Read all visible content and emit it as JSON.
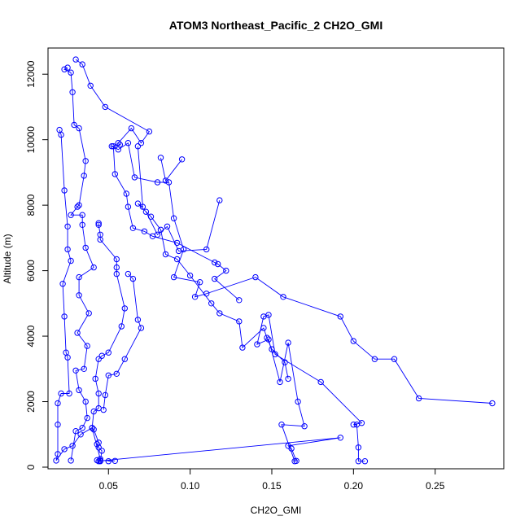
{
  "chart_data": {
    "type": "line",
    "title": "ATOM3 Northeast_Pacific_2 CH2O_GMI",
    "xlabel": "CH2O_GMI",
    "ylabel": "Altitude (m)",
    "xlim": [
      0.013,
      0.292
    ],
    "ylim": [
      -50,
      12800
    ],
    "xticks": [
      0.05,
      0.1,
      0.15,
      0.2,
      0.25
    ],
    "xtick_labels": [
      "0.05",
      "0.10",
      "0.15",
      "0.20",
      "0.25"
    ],
    "yticks": [
      0,
      2000,
      4000,
      6000,
      8000,
      10000,
      12000
    ],
    "ytick_labels": [
      "0",
      "2000",
      "4000",
      "6000",
      "8000",
      "10000",
      "12000"
    ],
    "color": "#0000ff",
    "marker": "open-circle",
    "series": [
      {
        "points": [
          [
            0.05,
            180
          ],
          [
            0.054,
            190
          ],
          [
            0.045,
            200
          ],
          [
            0.043,
            210
          ],
          [
            0.045,
            190
          ],
          [
            0.192,
            900
          ],
          [
            0.16,
            650
          ],
          [
            0.162,
            570
          ],
          [
            0.165,
            190
          ],
          [
            0.164,
            180
          ],
          [
            0.156,
            1300
          ],
          [
            0.17,
            1250
          ],
          [
            0.166,
            2000
          ],
          [
            0.16,
            3800
          ],
          [
            0.155,
            2600
          ],
          [
            0.148,
            3900
          ],
          [
            0.141,
            3750
          ],
          [
            0.145,
            4600
          ],
          [
            0.148,
            4650
          ],
          [
            0.152,
            3450
          ],
          [
            0.18,
            2600
          ],
          [
            0.205,
            1350
          ],
          [
            0.2,
            1300
          ],
          [
            0.202,
            1300
          ],
          [
            0.203,
            600
          ],
          [
            0.203,
            180
          ],
          [
            0.207,
            180
          ]
        ]
      },
      {
        "points": [
          [
            0.03,
            12450
          ],
          [
            0.034,
            12300
          ],
          [
            0.039,
            11650
          ],
          [
            0.048,
            11000
          ],
          [
            0.075,
            10250
          ],
          [
            0.07,
            9900
          ],
          [
            0.064,
            10350
          ],
          [
            0.056,
            9900
          ],
          [
            0.057,
            9850
          ],
          [
            0.052,
            9800
          ],
          [
            0.056,
            9700
          ],
          [
            0.062,
            9900
          ],
          [
            0.066,
            8850
          ],
          [
            0.08,
            8700
          ],
          [
            0.087,
            8700
          ],
          [
            0.09,
            7600
          ],
          [
            0.096,
            6650
          ],
          [
            0.09,
            5800
          ],
          [
            0.106,
            5650
          ],
          [
            0.103,
            5200
          ],
          [
            0.11,
            5300
          ],
          [
            0.14,
            5800
          ],
          [
            0.157,
            5200
          ],
          [
            0.192,
            4600
          ],
          [
            0.2,
            3850
          ],
          [
            0.213,
            3300
          ],
          [
            0.225,
            3300
          ],
          [
            0.24,
            2100
          ],
          [
            0.285,
            1950
          ]
        ]
      },
      {
        "points": [
          [
            0.02,
            10300
          ],
          [
            0.021,
            10150
          ],
          [
            0.023,
            8450
          ],
          [
            0.025,
            7350
          ],
          [
            0.025,
            6650
          ],
          [
            0.027,
            6300
          ],
          [
            0.022,
            5600
          ],
          [
            0.023,
            4600
          ],
          [
            0.024,
            3500
          ],
          [
            0.025,
            3350
          ],
          [
            0.026,
            2250
          ],
          [
            0.021,
            2250
          ],
          [
            0.019,
            1950
          ],
          [
            0.019,
            1300
          ],
          [
            0.019,
            400
          ],
          [
            0.018,
            200
          ],
          [
            0.023,
            550
          ],
          [
            0.028,
            650
          ],
          [
            0.033,
            1000
          ],
          [
            0.04,
            1200
          ],
          [
            0.045,
            250
          ],
          [
            0.044,
            180
          ]
        ]
      },
      {
        "points": [
          [
            0.025,
            12200
          ],
          [
            0.023,
            12150
          ],
          [
            0.027,
            12050
          ],
          [
            0.028,
            11450
          ],
          [
            0.029,
            10450
          ],
          [
            0.032,
            10350
          ],
          [
            0.036,
            9350
          ],
          [
            0.035,
            8900
          ],
          [
            0.032,
            8000
          ],
          [
            0.031,
            7950
          ],
          [
            0.027,
            7700
          ],
          [
            0.034,
            7700
          ],
          [
            0.034,
            7400
          ],
          [
            0.036,
            6700
          ],
          [
            0.041,
            6100
          ],
          [
            0.032,
            5800
          ],
          [
            0.032,
            5250
          ],
          [
            0.038,
            4700
          ],
          [
            0.031,
            4100
          ],
          [
            0.037,
            3700
          ],
          [
            0.035,
            3000
          ],
          [
            0.03,
            2950
          ],
          [
            0.032,
            2350
          ],
          [
            0.036,
            2000
          ],
          [
            0.037,
            1500
          ],
          [
            0.034,
            1200
          ],
          [
            0.03,
            1100
          ],
          [
            0.027,
            200
          ]
        ]
      },
      {
        "points": [
          [
            0.044,
            7450
          ],
          [
            0.044,
            7400
          ],
          [
            0.045,
            7100
          ],
          [
            0.045,
            6950
          ],
          [
            0.055,
            6350
          ],
          [
            0.055,
            6100
          ],
          [
            0.055,
            5900
          ],
          [
            0.06,
            4850
          ],
          [
            0.058,
            4300
          ],
          [
            0.05,
            3500
          ],
          [
            0.046,
            3400
          ],
          [
            0.044,
            3300
          ],
          [
            0.042,
            2700
          ],
          [
            0.044,
            2250
          ],
          [
            0.044,
            1800
          ],
          [
            0.041,
            1700
          ],
          [
            0.04,
            1200
          ],
          [
            0.041,
            1150
          ],
          [
            0.044,
            750
          ],
          [
            0.043,
            700
          ],
          [
            0.044,
            600
          ],
          [
            0.046,
            500
          ],
          [
            0.045,
            180
          ]
        ]
      },
      {
        "points": [
          [
            0.053,
            9800
          ],
          [
            0.054,
            8950
          ],
          [
            0.061,
            8350
          ],
          [
            0.062,
            7950
          ],
          [
            0.065,
            7300
          ],
          [
            0.072,
            7200
          ],
          [
            0.077,
            7050
          ],
          [
            0.092,
            6850
          ],
          [
            0.115,
            6250
          ],
          [
            0.117,
            6200
          ],
          [
            0.122,
            6000
          ],
          [
            0.115,
            5750
          ],
          [
            0.13,
            5100
          ]
        ]
      },
      {
        "points": [
          [
            0.068,
            9800
          ],
          [
            0.071,
            7950
          ],
          [
            0.068,
            8050
          ],
          [
            0.076,
            7650
          ],
          [
            0.082,
            7250
          ],
          [
            0.085,
            6500
          ],
          [
            0.092,
            6350
          ],
          [
            0.1,
            5850
          ],
          [
            0.113,
            5000
          ],
          [
            0.118,
            4700
          ],
          [
            0.13,
            4450
          ],
          [
            0.132,
            3650
          ],
          [
            0.145,
            4250
          ],
          [
            0.147,
            3950
          ],
          [
            0.15,
            3600
          ],
          [
            0.158,
            3200
          ],
          [
            0.16,
            2700
          ]
        ]
      },
      {
        "points": [
          [
            0.073,
            7800
          ],
          [
            0.08,
            7100
          ],
          [
            0.086,
            7350
          ],
          [
            0.093,
            6600
          ],
          [
            0.11,
            6650
          ],
          [
            0.118,
            8150
          ]
        ]
      },
      {
        "points": [
          [
            0.082,
            9450
          ],
          [
            0.085,
            8750
          ],
          [
            0.095,
            9400
          ]
        ]
      },
      {
        "points": [
          [
            0.062,
            5900
          ],
          [
            0.065,
            5750
          ],
          [
            0.068,
            4500
          ],
          [
            0.07,
            4250
          ],
          [
            0.06,
            3300
          ],
          [
            0.055,
            2850
          ],
          [
            0.05,
            2800
          ],
          [
            0.048,
            2200
          ],
          [
            0.047,
            1750
          ]
        ]
      }
    ]
  }
}
